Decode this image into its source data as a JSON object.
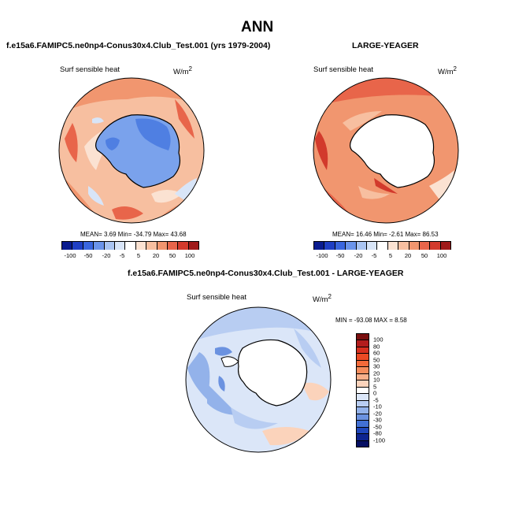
{
  "page_title": "ANN",
  "panels": [
    {
      "header": "f.e15a6.FAMIPC5.ne0np4-Conus30x4.Club_Test.001 (yrs 1979-2004)",
      "variable": "Surf sensible heat",
      "units": "W/m",
      "units_exp": "2",
      "stats": "MEAN=   3.69  Min= -34.79  Max=  43.68"
    },
    {
      "header": "LARGE-YEAGER",
      "variable": "Surf sensible heat",
      "units": "W/m",
      "units_exp": "2",
      "stats": "MEAN=  16.46  Min=  -2.61  Max=  86.53"
    },
    {
      "header": "f.e15a6.FAMIPC5.ne0np4-Conus30x4.Club_Test.001 - LARGE-YEAGER",
      "variable": "Surf sensible heat",
      "units": "W/m",
      "units_exp": "2",
      "stats": "MIN = -93.08 MAX =  8.58"
    }
  ],
  "colorbar_top": {
    "labels": [
      "-100",
      "-50",
      "-20",
      "-5",
      "5",
      "20",
      "50",
      "100"
    ],
    "colors": [
      "#0a1c8f",
      "#1f3fc4",
      "#3a66de",
      "#6b94ea",
      "#a9c4f2",
      "#d8e5f8",
      "#ffffff",
      "#fbe2d2",
      "#f7bfa0",
      "#f1966f",
      "#e8654a",
      "#d23a2c",
      "#a01a1a"
    ]
  },
  "colorbar_diff": {
    "labels": [
      "100",
      "80",
      "60",
      "50",
      "30",
      "20",
      "10",
      "5",
      "0",
      "-5",
      "-10",
      "-20",
      "-30",
      "-50",
      "-80",
      "-100"
    ],
    "colors": [
      "#7a0f0f",
      "#b31d1d",
      "#d8301f",
      "#ec4a24",
      "#f36a3a",
      "#f58d5d",
      "#f8b08b",
      "#fbd3bb",
      "#ffffff",
      "#dbe6f8",
      "#b8cdf2",
      "#93b2ea",
      "#6b92e0",
      "#4270d4",
      "#1f46bb",
      "#0d2490",
      "#060f63"
    ]
  }
}
